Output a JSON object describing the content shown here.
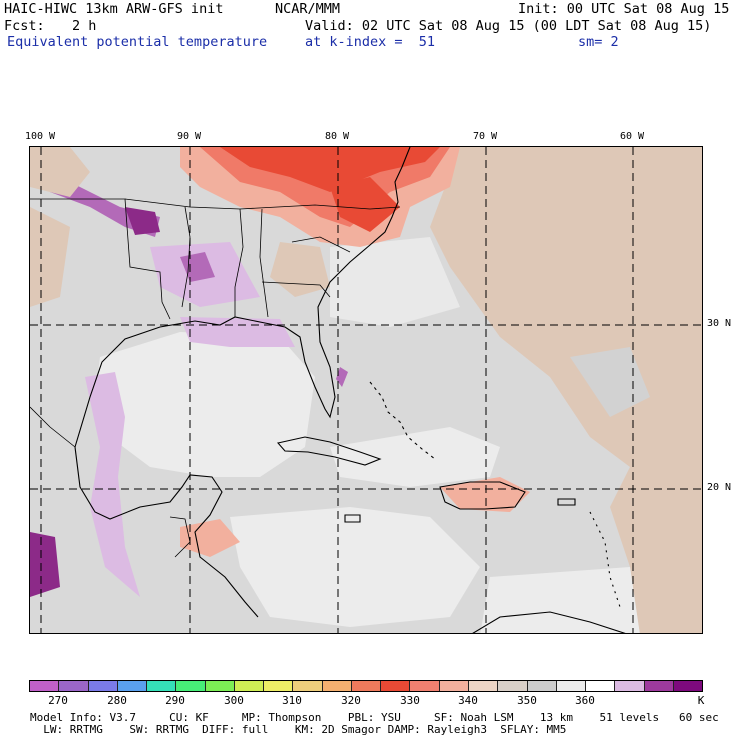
{
  "header": {
    "model": "HAIC-HIWC 13km ARW-GFS init",
    "org": "NCAR/MMM",
    "init": "Init: 00 UTC Sat 08 Aug 15",
    "fcst_label": "Fcst:",
    "fcst_value": "2 h",
    "valid": "Valid: 02 UTC Sat 08 Aug 15 (00 LDT Sat 08 Aug 15)",
    "field": "Equivalent potential temperature",
    "level": "at k-index =  51",
    "smoothing": "sm= 2"
  },
  "map": {
    "lon_labels": [
      "100 W",
      "90 W",
      "80 W",
      "70 W",
      "60 W"
    ],
    "lat_labels": [
      "30 N",
      "20 N"
    ],
    "palette": {
      "background": "#d9d9d9",
      "ocean_light": "#ececec",
      "tan": "#dec8b7",
      "peach": "#f2b09e",
      "salmon": "#f07a68",
      "red": "#e84a35",
      "lavender": "#dcbbe3",
      "purple": "#b36ab8",
      "dark_purple": "#8c2a88",
      "coast": "#000000"
    }
  },
  "colorbar": {
    "colors": [
      "#c060c8",
      "#9b66c8",
      "#7b7be8",
      "#5aa0ee",
      "#35e0b8",
      "#47ee78",
      "#7cee55",
      "#cfee55",
      "#eeee66",
      "#eece7c",
      "#f4b070",
      "#ee7a5c",
      "#e84a35",
      "#f08070",
      "#f2b09e",
      "#edd5c5",
      "#d9d0c8",
      "#cccccc",
      "#ececec",
      "#ffffff",
      "#dcbbe3",
      "#9e3a9e",
      "#7d0a7d"
    ],
    "labels": [
      "270",
      "280",
      "290",
      "300",
      "310",
      "320",
      "330",
      "340",
      "350",
      "360",
      "K"
    ]
  },
  "footer": {
    "line1": "Model Info: V3.7     CU: KF     MP: Thompson    PBL: YSU     SF: Noah LSM    13 km    51 levels   60 sec",
    "line2": "  LW: RRTMG    SW: RRTMG  DIFF: full    KM: 2D Smagor DAMP: Rayleigh3  SFLAY: MM5"
  }
}
